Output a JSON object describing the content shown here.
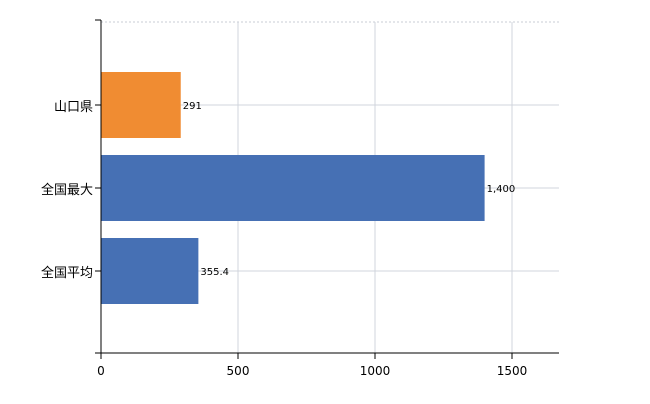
{
  "chart_data": {
    "type": "bar",
    "orientation": "horizontal",
    "title": "",
    "xlabel": "",
    "ylabel": "",
    "categories": [
      "山口県",
      "全国最大",
      "全国平均"
    ],
    "values": [
      291,
      1400,
      355.4
    ],
    "value_labels": [
      "291",
      "1,400",
      "355.4"
    ],
    "bar_colors": [
      "#f08c32",
      "#4670b4",
      "#4670b4"
    ],
    "xlim": [
      0,
      1680
    ],
    "xticks": [
      0,
      500,
      1000,
      1500
    ],
    "xtick_labels": [
      "0",
      "500",
      "1000",
      "1500"
    ],
    "grid": true,
    "legend": "none"
  }
}
